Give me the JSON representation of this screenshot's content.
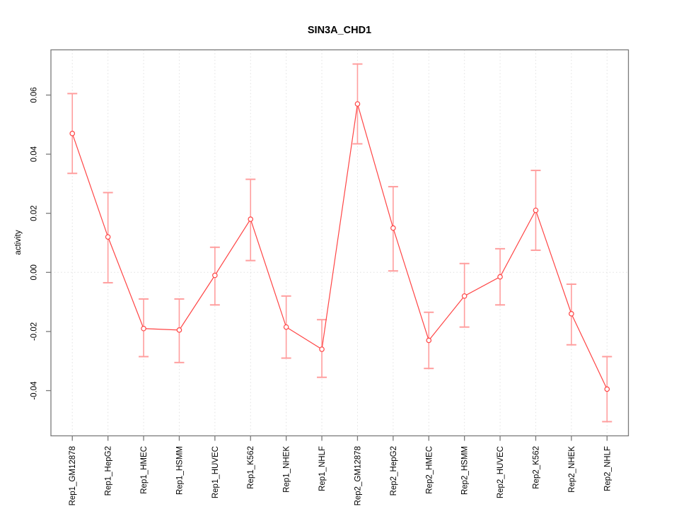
{
  "chart_data": {
    "type": "line",
    "title": "SIN3A_CHD1",
    "xlabel": "",
    "ylabel": "activity",
    "legend": "none",
    "grid": "vertical dotted gridline per category; dotted horizontal line at y=0",
    "marker": "open-circle",
    "error_bars": true,
    "categories": [
      "Rep1_GM12878",
      "Rep1_HepG2",
      "Rep1_HMEC",
      "Rep1_HSMM",
      "Rep1_HUVEC",
      "Rep1_K562",
      "Rep1_NHEK",
      "Rep1_NHLF",
      "Rep2_GM12878",
      "Rep2_HepG2",
      "Rep2_HMEC",
      "Rep2_HSMM",
      "Rep2_HUVEC",
      "Rep2_K562",
      "Rep2_NHEK",
      "Rep2_NHLF"
    ],
    "values": [
      0.047,
      0.012,
      -0.019,
      -0.0195,
      -0.001,
      0.018,
      -0.0185,
      -0.026,
      0.057,
      0.015,
      -0.023,
      -0.008,
      -0.0015,
      0.021,
      -0.014,
      -0.0395
    ],
    "error_high": [
      0.0605,
      0.027,
      -0.009,
      -0.009,
      0.0085,
      0.0315,
      -0.008,
      -0.016,
      0.0705,
      0.029,
      -0.0135,
      0.003,
      0.008,
      0.0345,
      -0.004,
      -0.0285
    ],
    "error_low": [
      0.0335,
      -0.0035,
      -0.0285,
      -0.0305,
      -0.011,
      0.004,
      -0.029,
      -0.0355,
      0.0435,
      0.0005,
      -0.0325,
      -0.0185,
      -0.011,
      0.0075,
      -0.0245,
      -0.0505
    ],
    "yticks": [
      -0.04,
      -0.02,
      0.0,
      0.02,
      0.04,
      0.06
    ],
    "ytick_labels": [
      "-0.04",
      "-0.02",
      "0.00",
      "0.02",
      "0.04",
      "0.06"
    ],
    "ylim": [
      -0.0553,
      0.0753
    ],
    "colors": {
      "line": "#ff4545",
      "error_bar": "#ff9e9e",
      "grid": "#e1e1e1",
      "axis": "#7a7a7a",
      "text": "#000000",
      "background": "#ffffff"
    }
  }
}
